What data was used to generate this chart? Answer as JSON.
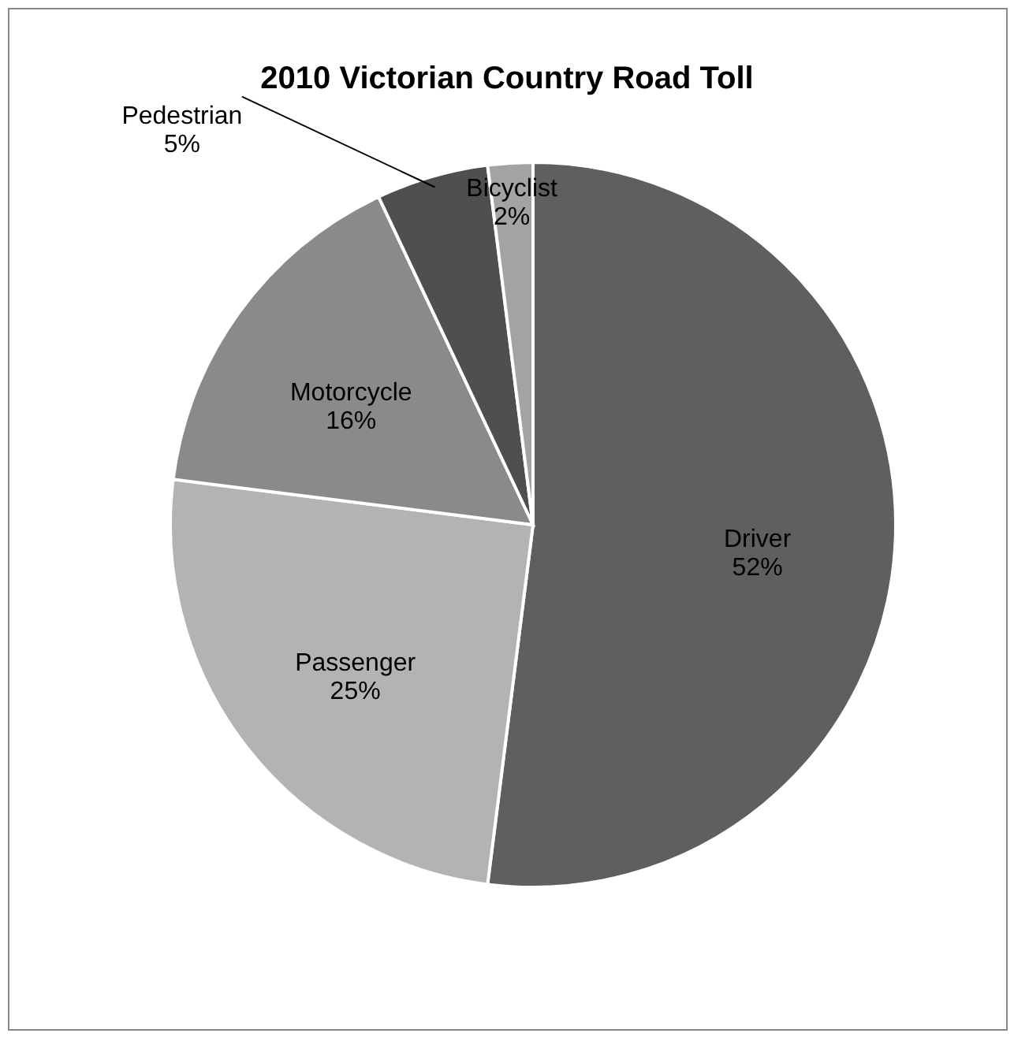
{
  "chart_data": {
    "type": "pie",
    "title": "2010 Victorian Country Road Toll",
    "categories": [
      "Driver",
      "Passenger",
      "Motorcycle",
      "Pedestrian",
      "Bicyclist"
    ],
    "values": [
      52,
      25,
      16,
      5,
      2
    ],
    "colors": [
      "#5f5f5f",
      "#b3b3b3",
      "#8a8a8a",
      "#4f4f4f",
      "#a3a3a3"
    ],
    "value_labels": [
      "52%",
      "25%",
      "16%",
      "5%",
      "2%"
    ],
    "legend": false
  }
}
